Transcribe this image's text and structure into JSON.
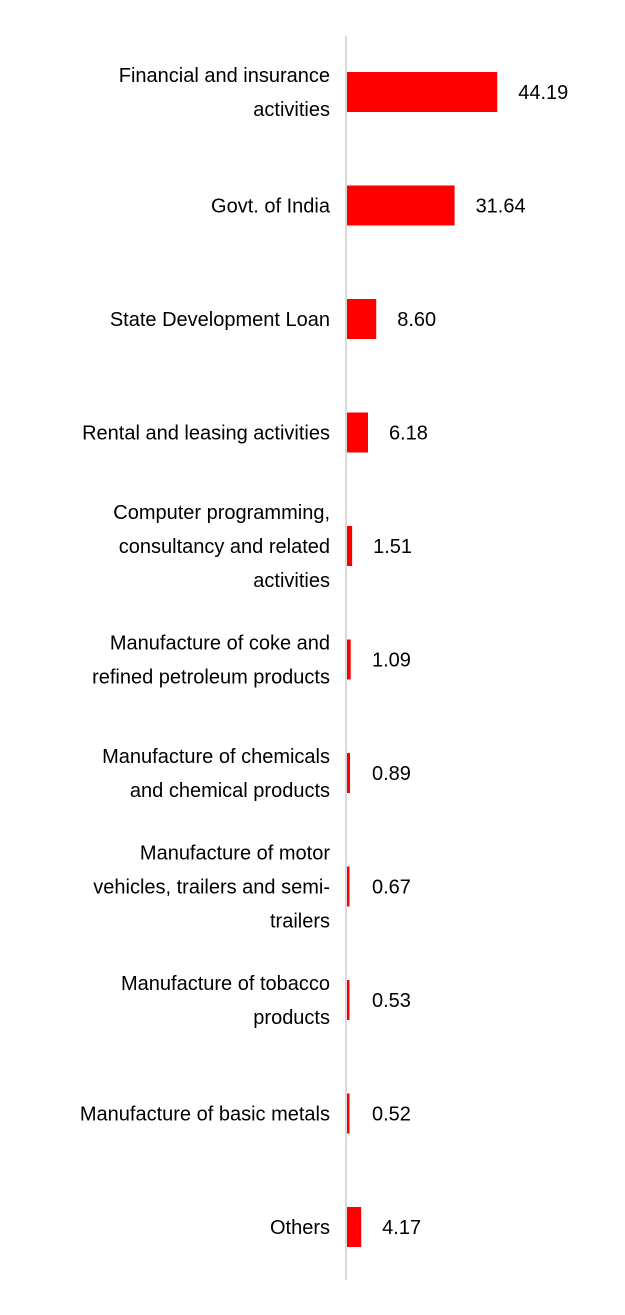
{
  "chart_data": {
    "type": "bar",
    "orientation": "horizontal",
    "categories": [
      "Financial and insurance activities",
      "Govt. of India",
      "State Development Loan",
      "Rental and leasing activities",
      "Computer programming, consultancy and related activities",
      "Manufacture of coke and refined petroleum products",
      "Manufacture of chemicals and chemical products",
      "Manufacture of motor vehicles, trailers and semi-trailers",
      "Manufacture of tobacco products",
      "Manufacture of basic metals",
      "Others"
    ],
    "category_label_lines": [
      [
        "Financial and insurance",
        "activities"
      ],
      [
        "Govt. of India"
      ],
      [
        "State Development Loan"
      ],
      [
        "Rental and leasing activities"
      ],
      [
        "Computer programming,",
        "consultancy and related",
        "activities"
      ],
      [
        "Manufacture of coke and",
        "refined petroleum products"
      ],
      [
        "Manufacture of chemicals",
        "and chemical products"
      ],
      [
        "Manufacture of motor",
        "vehicles, trailers and semi-",
        "trailers"
      ],
      [
        "Manufacture of tobacco",
        "products"
      ],
      [
        "Manufacture of basic metals"
      ],
      [
        "Others"
      ]
    ],
    "values": [
      44.19,
      31.64,
      8.6,
      6.18,
      1.51,
      1.09,
      0.89,
      0.67,
      0.53,
      0.52,
      4.17
    ],
    "data_labels": [
      "44.19",
      "31.64",
      "8.60",
      "6.18",
      "1.51",
      "1.09",
      "0.89",
      "0.67",
      "0.53",
      "0.52",
      "4.17"
    ],
    "title": "",
    "xlabel": "",
    "ylabel": "",
    "xlim": [
      0,
      50
    ],
    "grid": false,
    "legend": "none",
    "colors": {
      "bar": "#ff0000",
      "axis": "#d9d9d9",
      "text": "#000000"
    }
  }
}
